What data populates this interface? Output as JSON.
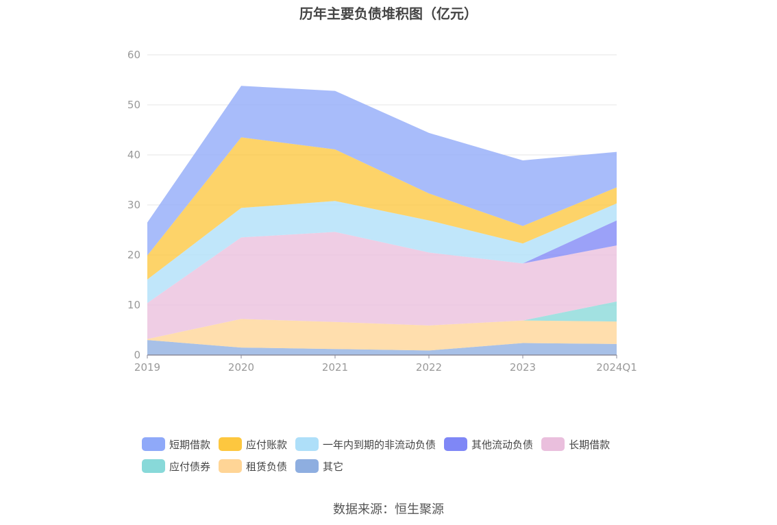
{
  "chart_data": {
    "type": "area",
    "stacked": true,
    "title": "历年主要负债堆积图（亿元）",
    "categories": [
      "2019",
      "2020",
      "2021",
      "2022",
      "2023",
      "2024Q1"
    ],
    "ylim": [
      0,
      60
    ],
    "yticks": [
      0,
      10,
      20,
      30,
      40,
      50,
      60
    ],
    "grid": true,
    "legend_position": "bottom",
    "series": [
      {
        "name": "其它",
        "color": "#8eaee0",
        "values": [
          3.0,
          1.5,
          1.2,
          0.9,
          2.4,
          2.2
        ]
      },
      {
        "name": "租赁负债",
        "color": "#ffd596",
        "values": [
          0.2,
          5.7,
          5.4,
          5.0,
          4.5,
          4.5
        ]
      },
      {
        "name": "应付债券",
        "color": "#88d9d9",
        "values": [
          0,
          0,
          0,
          0,
          0,
          4.0
        ]
      },
      {
        "name": "长期借款",
        "color": "#eabfdd",
        "values": [
          7.2,
          16.3,
          18.0,
          14.6,
          11.4,
          11.2
        ]
      },
      {
        "name": "其他流动负债",
        "color": "#7f87f6",
        "values": [
          0,
          0,
          0,
          0,
          0,
          5.0
        ]
      },
      {
        "name": "一年内到期的非流动负债",
        "color": "#aedff9",
        "values": [
          4.7,
          5.9,
          6.2,
          6.4,
          4.0,
          3.4
        ]
      },
      {
        "name": "应付账款",
        "color": "#fdc73f",
        "values": [
          4.8,
          14.1,
          10.3,
          5.4,
          3.5,
          3.2
        ]
      },
      {
        "name": "短期借款",
        "color": "#8fa9f9",
        "values": [
          6.6,
          10.3,
          11.7,
          12.1,
          13.1,
          7.1
        ]
      }
    ]
  },
  "legend_rows": [
    [
      {
        "label": "短期借款",
        "color": "#8fa9f9"
      },
      {
        "label": "应付账款",
        "color": "#fdc73f"
      },
      {
        "label": "一年内到期的非流动负债",
        "color": "#aedff9"
      },
      {
        "label": "其他流动负债",
        "color": "#7f87f6"
      },
      {
        "label": "长期借款",
        "color": "#eabfdd"
      }
    ],
    [
      {
        "label": "应付债券",
        "color": "#88d9d9"
      },
      {
        "label": "租赁负债",
        "color": "#ffd596"
      },
      {
        "label": "其它",
        "color": "#8eaee0"
      }
    ]
  ],
  "source": "数据来源：恒生聚源"
}
